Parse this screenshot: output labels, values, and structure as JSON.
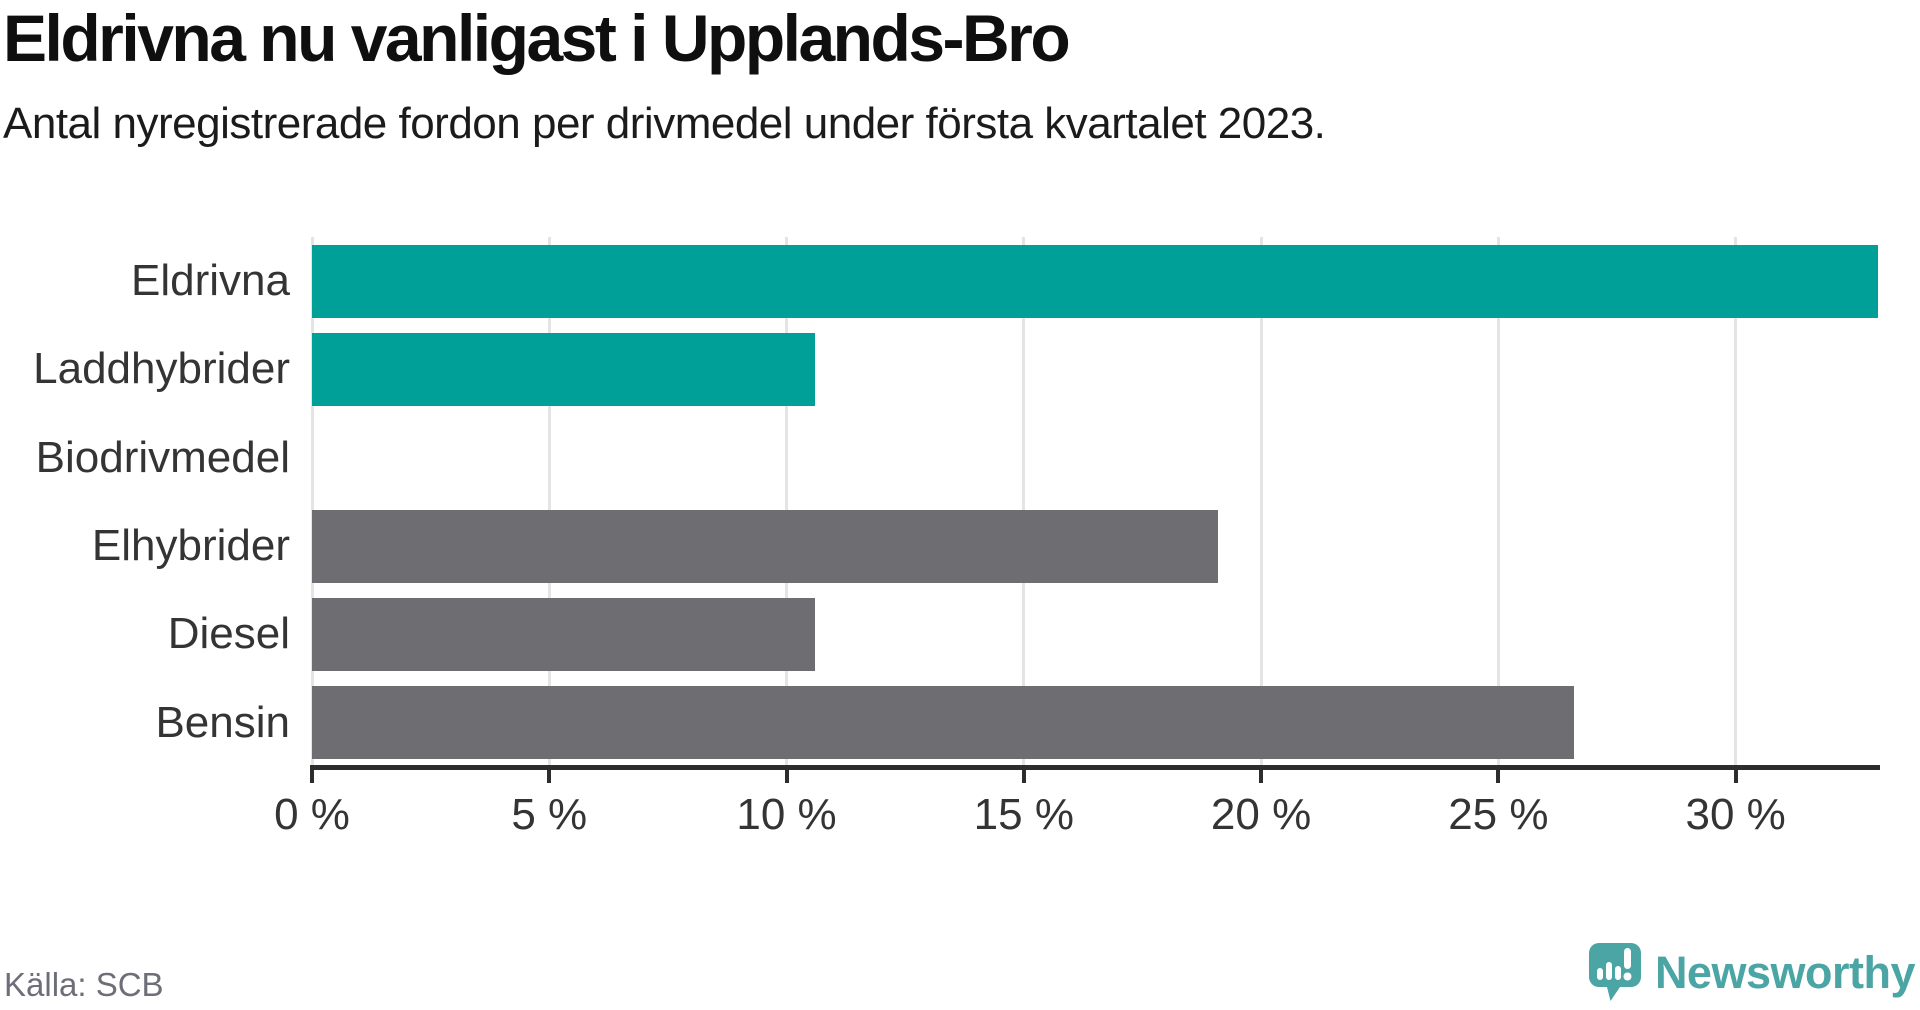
{
  "header": {
    "title": "Eldrivna nu vanligast i Upplands-Bro",
    "subtitle": "Antal nyregistrerade fordon per drivmedel under första kvartalet 2023."
  },
  "chart_data": {
    "type": "bar",
    "orientation": "horizontal",
    "title": "Eldrivna nu vanligast i Upplands-Bro",
    "subtitle": "Antal nyregistrerade fordon per drivmedel under första kvartalet 2023.",
    "categories": [
      "Eldrivna",
      "Laddhybrider",
      "Biodrivmedel",
      "Elhybrider",
      "Diesel",
      "Bensin"
    ],
    "values": [
      33.0,
      10.6,
      0,
      19.1,
      10.6,
      26.6
    ],
    "unit": "%",
    "xlim": [
      0,
      33
    ],
    "x_ticks": [
      0,
      5,
      10,
      15,
      20,
      25,
      30
    ],
    "x_tick_labels": [
      "0 %",
      "5 %",
      "10 %",
      "15 %",
      "20 %",
      "25 %",
      "30 %"
    ],
    "bar_colors": [
      "#00a099",
      "#00a099",
      "#00a099",
      "#6d6d72",
      "#6d6d72",
      "#6d6d72"
    ],
    "highlight_color": "#00a099",
    "default_color": "#6d6d72",
    "grid": true,
    "gridline_color": "#e4e4e4",
    "axis_color": "#2d2d2d",
    "legend": "none"
  },
  "footer": {
    "source": "Källa: SCB",
    "logo_text": "Newsworthy",
    "logo_color": "#4ba5a4"
  }
}
